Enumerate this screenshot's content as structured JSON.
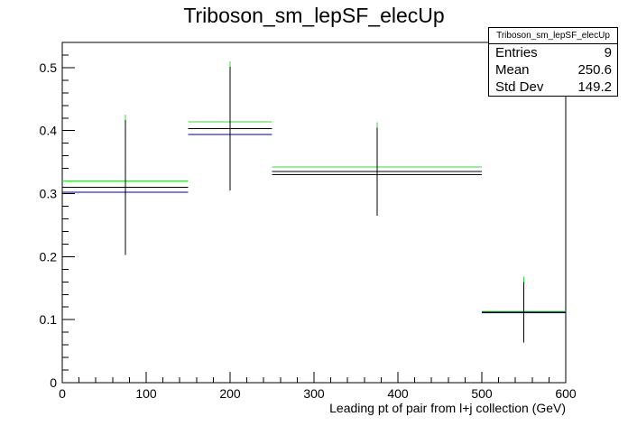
{
  "chart_data": {
    "type": "histogram",
    "title": "Triboson_sm_lepSF_elecUp",
    "xlabel": "Leading pt of pair from l+j collection (GeV)",
    "ylabel": "",
    "xlim": [
      0,
      600
    ],
    "ylim": [
      0,
      0.54
    ],
    "x_ticks": [
      0,
      100,
      200,
      300,
      400,
      500,
      600
    ],
    "y_ticks": [
      0,
      0.1,
      0.2,
      0.3,
      0.4,
      0.5
    ],
    "bins": [
      {
        "x_low": 0,
        "x_high": 150,
        "x_center": 75,
        "value": 0.31,
        "error": 0.107,
        "up": 0.32,
        "down": 0.302
      },
      {
        "x_low": 150,
        "x_high": 250,
        "x_center": 200,
        "value": 0.403,
        "error": 0.098,
        "up": 0.414,
        "down": 0.394
      },
      {
        "x_low": 250,
        "x_high": 500,
        "x_center": 375,
        "value": 0.335,
        "error": 0.07,
        "up": 0.342,
        "down": 0.33
      },
      {
        "x_low": 500,
        "x_high": 600,
        "x_center": 550,
        "value": 0.112,
        "error": 0.048,
        "up": 0.113,
        "down": 0.111
      }
    ],
    "colors": {
      "nominal": "#000000",
      "up": "#33dd33",
      "down": "#00008b"
    },
    "grid": false
  },
  "stats": {
    "name": "Triboson_sm_lepSF_elecUp",
    "entries_label": "Entries",
    "entries": "9",
    "mean_label": "Mean",
    "mean": "250.6",
    "stddev_label": "Std Dev",
    "stddev": "149.2"
  }
}
